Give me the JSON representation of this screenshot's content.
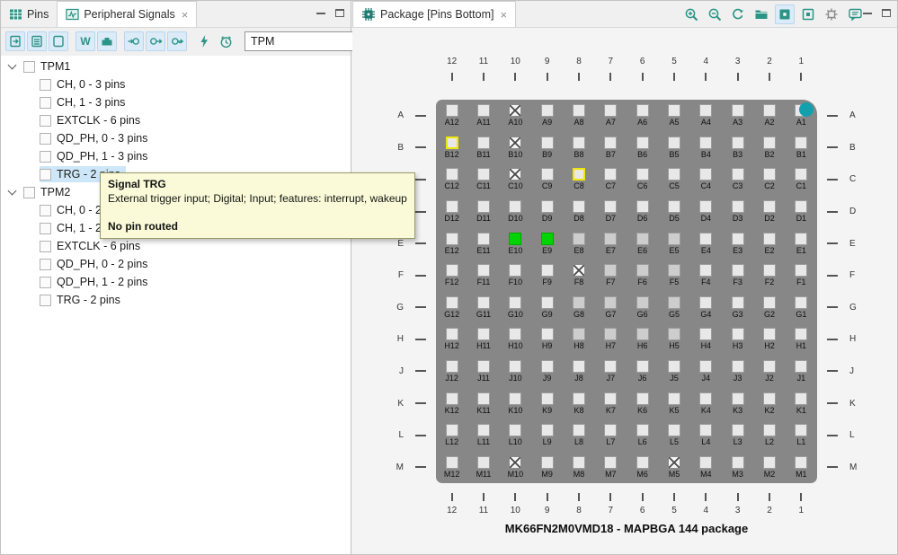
{
  "glyphs": {
    "close": "×",
    "clear": "×",
    "letter_w": "W"
  },
  "left_panel": {
    "tabs": [
      {
        "label": "Pins"
      },
      {
        "label": "Peripheral Signals"
      }
    ],
    "toolbar_icon_names": [
      "show-routed-signals-icon",
      "show-partially-routed-signals-icon",
      "show-unrouted-signals-icon",
      "letter-w-icon",
      "connector-icon",
      "input-direction-icon",
      "output-direction-icon",
      "bidirectional-direction-icon",
      "power-signals-icon",
      "clock-signals-icon"
    ],
    "search": {
      "value": "TPM"
    },
    "tree": [
      {
        "label": "TPM1",
        "children": [
          "CH, 0 - 3 pins",
          "CH, 1 - 3 pins",
          "EXTCLK - 6 pins",
          "QD_PH, 0 - 3 pins",
          "QD_PH, 1 - 3 pins",
          "TRG - 2 pins"
        ]
      },
      {
        "label": "TPM2",
        "children": [
          "CH, 0 - 2 pins",
          "CH, 1 - 2 pins",
          "EXTCLK - 6 pins",
          "QD_PH, 0 - 2 pins",
          "QD_PH, 1 - 2 pins",
          "TRG - 2 pins"
        ]
      }
    ],
    "selected": {
      "group": 0,
      "child": 5
    }
  },
  "tooltip": {
    "title": "Signal TRG",
    "description": "External trigger input; Digital; Input; features: interrupt, wakeup",
    "status": "No pin routed"
  },
  "right_panel": {
    "tab": {
      "label": "Package [Pins Bottom]"
    },
    "toolbar_icon_names": [
      "zoom-in-icon",
      "zoom-out-icon",
      "rotate-icon",
      "folder-icon",
      "package-top-view-icon",
      "package-bottom-view-icon",
      "package-settings-icon",
      "comment-icon"
    ],
    "package": {
      "title": "MK66FN2M0VMD18 - MAPBGA 144 package",
      "columns": [
        "12",
        "11",
        "10",
        "9",
        "8",
        "7",
        "6",
        "5",
        "4",
        "3",
        "2",
        "1"
      ],
      "rows": [
        "A",
        "B",
        "C",
        "D",
        "E",
        "F",
        "G",
        "H",
        "J",
        "K",
        "L",
        "M"
      ],
      "crossed_pins": [
        "A10",
        "B10",
        "C10",
        "F8",
        "M10",
        "M5"
      ],
      "green_pins": [
        "E10",
        "E9"
      ],
      "yellow_outline_pins": [
        "B12",
        "C8"
      ],
      "shaded_pins": [
        "E8",
        "E7",
        "E6",
        "E5",
        "F7",
        "F6",
        "F5",
        "G8",
        "G7",
        "G6",
        "G5",
        "H8",
        "H7",
        "H6",
        "H5"
      ],
      "colors": {
        "package_body": "#878787",
        "pin_default": "#e8e8e8",
        "pin_shaded": "#cdcdcd",
        "pin_green": "#00d300",
        "pin_yellow_border": "#f0e70a",
        "pin1_marker": "#12a0ac",
        "accent_teal": "#2b9486",
        "selection_blue": "#cde7f8",
        "tooltip_bg": "#fafad8"
      }
    }
  }
}
